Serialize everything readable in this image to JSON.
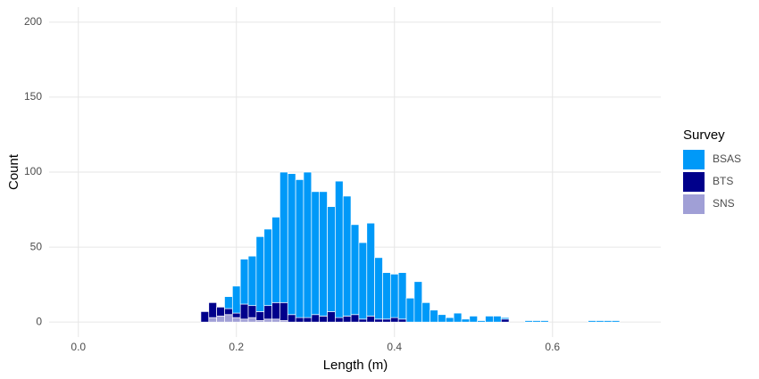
{
  "chart_data": {
    "type": "histogram",
    "stacked": true,
    "x_label": "Length (m)",
    "y_label": "Count",
    "legend_title": "Survey",
    "legend": "right",
    "bins": [
      0.155,
      0.165,
      0.175,
      0.185,
      0.195,
      0.205,
      0.215,
      0.225,
      0.235,
      0.245,
      0.255,
      0.265,
      0.275,
      0.285,
      0.295,
      0.305,
      0.315,
      0.325,
      0.335,
      0.345,
      0.355,
      0.365,
      0.375,
      0.385,
      0.395,
      0.405,
      0.415,
      0.425,
      0.435,
      0.445,
      0.455,
      0.465,
      0.475,
      0.485,
      0.495,
      0.505,
      0.515,
      0.525,
      0.535,
      0.545,
      0.555,
      0.565,
      0.575,
      0.585,
      0.595,
      0.605,
      0.615,
      0.625,
      0.635,
      0.645,
      0.655,
      0.665,
      0.675,
      0.685
    ],
    "series": [
      {
        "name": "BSAS",
        "color": "#0099f8",
        "values": [
          0,
          0,
          0,
          8,
          18,
          30,
          33,
          50,
          51,
          57,
          87,
          94,
          92,
          97,
          82,
          83,
          70,
          91,
          80,
          60,
          51,
          62,
          41,
          31,
          29,
          31,
          16,
          27,
          13,
          8,
          5,
          3,
          6,
          2,
          4,
          1,
          4,
          4,
          1,
          0,
          0,
          1,
          1,
          1,
          0,
          0,
          0,
          0,
          0,
          1,
          1,
          1,
          1
        ]
      },
      {
        "name": "BTS",
        "color": "#00008b",
        "values": [
          7,
          10,
          6,
          4,
          3,
          10,
          8,
          6,
          9,
          11,
          12,
          5,
          3,
          3,
          5,
          4,
          7,
          3,
          4,
          5,
          2,
          4,
          2,
          2,
          3,
          2,
          0,
          0,
          0,
          0,
          0,
          0,
          0,
          0,
          0,
          0,
          0,
          0,
          2,
          0,
          0,
          0,
          0,
          0,
          0,
          0,
          0,
          0,
          0,
          0,
          0,
          0,
          0
        ]
      },
      {
        "name": "SNS",
        "color": "#a09fd6",
        "values": [
          0,
          3,
          4,
          5,
          3,
          2,
          3,
          1,
          2,
          2,
          1,
          0,
          0,
          0,
          0,
          0,
          0,
          0,
          0,
          0,
          0,
          0,
          0,
          0,
          0,
          0,
          0,
          0,
          0,
          0,
          0,
          0,
          0,
          0,
          0,
          0,
          0,
          0,
          0,
          0,
          0,
          0,
          0,
          0,
          0,
          0,
          0,
          0,
          0,
          0,
          0,
          0,
          0
        ]
      }
    ],
    "xlim": [
      -0.037,
      0.737
    ],
    "xticks": [
      {
        "value": 0,
        "label": "0.0"
      },
      0.2,
      0.4,
      0.6
    ],
    "ylim": [
      -10,
      210
    ],
    "yticks": [
      0,
      50,
      100,
      150,
      200
    ],
    "grid": true
  }
}
